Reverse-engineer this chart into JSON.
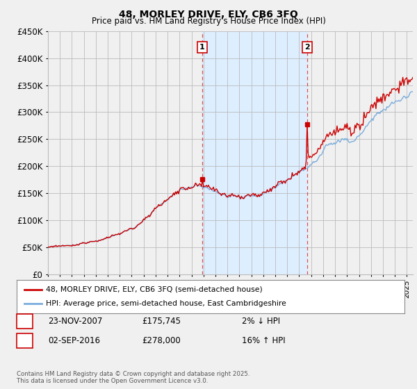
{
  "title": "48, MORLEY DRIVE, ELY, CB6 3FQ",
  "subtitle": "Price paid vs. HM Land Registry's House Price Index (HPI)",
  "ylabel_ticks": [
    "£0",
    "£50K",
    "£100K",
    "£150K",
    "£200K",
    "£250K",
    "£300K",
    "£350K",
    "£400K",
    "£450K"
  ],
  "ytick_values": [
    0,
    50000,
    100000,
    150000,
    200000,
    250000,
    300000,
    350000,
    400000,
    450000
  ],
  "ylim": [
    0,
    450000
  ],
  "xlim_start": 1995.0,
  "xlim_end": 2025.5,
  "sale1_x": 2007.9,
  "sale1_y": 175745,
  "sale1_label": "1",
  "sale2_x": 2016.67,
  "sale2_y": 278000,
  "sale2_label": "2",
  "line_color_price": "#cc0000",
  "line_color_hpi": "#7aacdc",
  "shaded_color": "#ddeeff",
  "vline_color": "#dd3333",
  "background_color": "#f0f0f0",
  "plot_bg_color": "#f0f0f0",
  "grid_color": "#bbbbbb",
  "legend_label_price": "48, MORLEY DRIVE, ELY, CB6 3FQ (semi-detached house)",
  "legend_label_hpi": "HPI: Average price, semi-detached house, East Cambridgeshire",
  "annotation1_date": "23-NOV-2007",
  "annotation1_price": "£175,745",
  "annotation1_hpi": "2% ↓ HPI",
  "annotation2_date": "02-SEP-2016",
  "annotation2_price": "£278,000",
  "annotation2_hpi": "16% ↑ HPI",
  "footer": "Contains HM Land Registry data © Crown copyright and database right 2025.\nThis data is licensed under the Open Government Licence v3.0."
}
